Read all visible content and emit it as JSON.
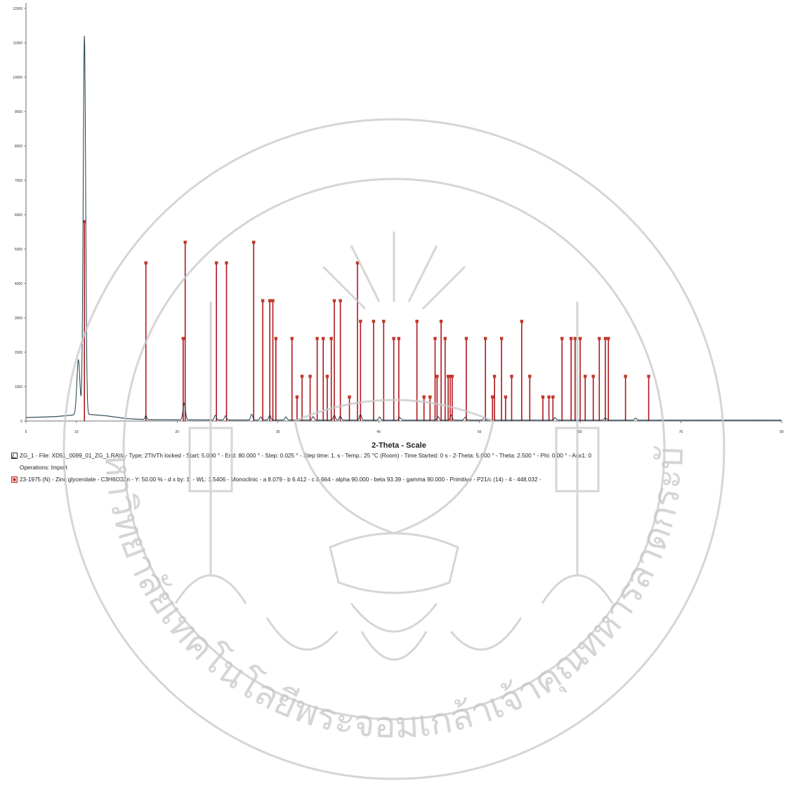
{
  "chart_data": {
    "type": "line",
    "xlabel": "2-Theta - Scale",
    "ylabel": "",
    "xlim": [
      5,
      80
    ],
    "ylim": [
      0,
      12000
    ],
    "x_ticks": [
      5,
      10,
      20,
      30,
      40,
      50,
      60,
      70,
      80
    ],
    "x_tick_labels": [
      "5",
      "10",
      "20",
      "30",
      "40",
      "50",
      "60",
      "70",
      "80"
    ],
    "y_ticks": [
      0,
      1000,
      2000,
      3000,
      4000,
      5000,
      6000,
      7000,
      8000,
      9000,
      10000,
      11000,
      12000
    ],
    "y_tick_labels": [
      "0",
      "1000",
      "2000",
      "3000",
      "4000",
      "5000",
      "6000",
      "7000",
      "8000",
      "9000",
      "10000",
      "11000",
      "12000"
    ],
    "scan": {
      "baseline": [
        [
          5,
          100
        ],
        [
          8,
          130
        ],
        [
          9.5,
          170
        ],
        [
          11,
          200
        ],
        [
          13,
          150
        ],
        [
          15,
          70
        ],
        [
          17,
          40
        ],
        [
          25,
          30
        ],
        [
          40,
          25
        ],
        [
          55,
          25
        ],
        [
          70,
          25
        ],
        [
          80,
          25
        ]
      ],
      "peaks": [
        {
          "x": 10.2,
          "y": 1600,
          "w": 0.15
        },
        {
          "x": 10.8,
          "y": 11000,
          "w": 0.12
        },
        {
          "x": 16.9,
          "y": 120,
          "w": 0.08
        },
        {
          "x": 20.7,
          "y": 480,
          "w": 0.12
        },
        {
          "x": 23.8,
          "y": 140,
          "w": 0.1
        },
        {
          "x": 24.8,
          "y": 120,
          "w": 0.1
        },
        {
          "x": 27.4,
          "y": 170,
          "w": 0.1
        },
        {
          "x": 28.3,
          "y": 90,
          "w": 0.1
        },
        {
          "x": 29.2,
          "y": 140,
          "w": 0.1
        },
        {
          "x": 30.8,
          "y": 90,
          "w": 0.1
        },
        {
          "x": 33.5,
          "y": 100,
          "w": 0.1
        },
        {
          "x": 35.6,
          "y": 140,
          "w": 0.1
        },
        {
          "x": 36.2,
          "y": 120,
          "w": 0.1
        },
        {
          "x": 38.2,
          "y": 170,
          "w": 0.1
        },
        {
          "x": 40.1,
          "y": 90,
          "w": 0.1
        },
        {
          "x": 42.1,
          "y": 80,
          "w": 0.1
        },
        {
          "x": 45.9,
          "y": 100,
          "w": 0.1
        },
        {
          "x": 47.2,
          "y": 140,
          "w": 0.1
        },
        {
          "x": 48.6,
          "y": 90,
          "w": 0.1
        },
        {
          "x": 50.5,
          "y": 80,
          "w": 0.1
        },
        {
          "x": 57.5,
          "y": 70,
          "w": 0.1
        },
        {
          "x": 62.5,
          "y": 70,
          "w": 0.1
        },
        {
          "x": 65.5,
          "y": 60,
          "w": 0.1
        }
      ]
    },
    "reference_sticks": {
      "x": [
        10.8,
        16.9,
        20.6,
        20.8,
        23.9,
        24.9,
        27.6,
        28.5,
        29.2,
        29.5,
        29.8,
        31.4,
        31.9,
        32.4,
        33.2,
        33.9,
        34.5,
        34.9,
        35.3,
        35.6,
        36.2,
        37.1,
        37.9,
        38.2,
        39.5,
        40.5,
        41.5,
        42.0,
        43.8,
        44.5,
        45.1,
        45.6,
        45.8,
        46.2,
        46.6,
        46.9,
        47.1,
        47.3,
        48.7,
        50.6,
        51.3,
        51.5,
        52.2,
        52.6,
        53.2,
        54.2,
        55.0,
        56.3,
        56.9,
        57.3,
        58.2,
        59.1,
        59.5,
        60.0,
        60.5,
        61.3,
        61.9,
        62.5,
        62.8,
        64.5,
        66.8
      ],
      "y": [
        5800,
        4600,
        2400,
        5200,
        4600,
        4600,
        5200,
        3500,
        3500,
        3500,
        2400,
        2400,
        700,
        1300,
        1300,
        2400,
        2400,
        1300,
        2400,
        3500,
        3500,
        700,
        4600,
        2900,
        2900,
        2900,
        2400,
        2400,
        2900,
        700,
        700,
        2400,
        1300,
        2900,
        2400,
        1300,
        1300,
        1300,
        2400,
        2400,
        700,
        1300,
        2400,
        700,
        1300,
        2900,
        1300,
        700,
        700,
        700,
        2400,
        2400,
        2400,
        2400,
        1300,
        1300,
        2400,
        2400,
        2400,
        1300,
        1300
      ]
    },
    "series": [
      {
        "name": "ZG_1"
      },
      {
        "name": "23-1975 (N) - Zinc glycerolate"
      }
    ],
    "grid": false,
    "legend_placement": "bottom"
  },
  "legend": {
    "line1": "ZG_1 - File: XD51_0099_01_ZG_1.RAW - Type: 2Th/Th locked - Start: 5.000 ° - End: 80.000 ° - Step: 0.025 ° - Step time: 1. s - Temp.: 25 °C (Room) - Time Started: 0 s - 2-Theta: 5.000 ° - Theta: 2.500 ° - Phi: 0.00 ° - Aux1: 0",
    "line2": "Operations: Import",
    "line3": "23-1975 (N) - Zinc glycerolate - C3H6O3Zn - Y: 50.00 % - d x by: 1. - WL: 1.5406 - Monoclinic - a 8.079 - b 6.412 - c 8.664 - alpha 90.000 - beta 93.39 - gamma 90.000 - Primitive - P21/c (14) - 4 - 448.032 -"
  },
  "colors": {
    "scan": "#1f3d4a",
    "reference": "#b0161c",
    "reference_marker": "#c0392b",
    "watermark": "#c8c8c8"
  },
  "watermark_text": {
    "left_arc": "มหาวิทยาลัยเทคโนโลยีพระจอมเกล้าเจ้าคุณทหารลาดกระบัง"
  }
}
